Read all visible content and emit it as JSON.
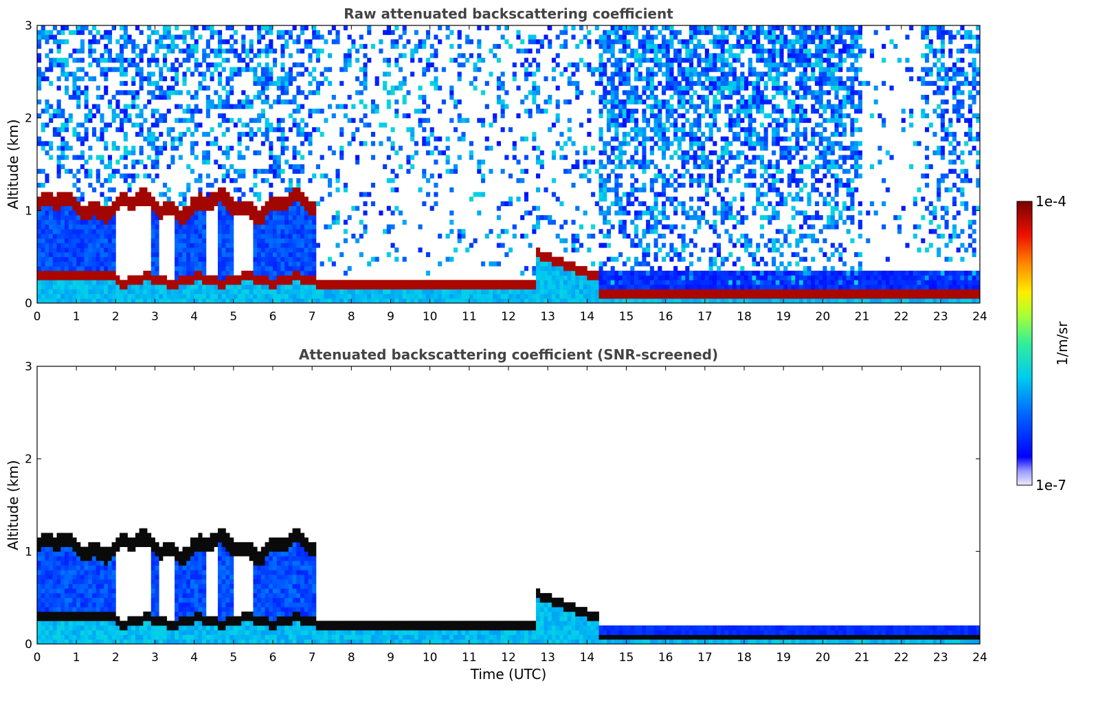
{
  "chart_data": [
    {
      "type": "heatmap",
      "title": "Raw attenuated backscattering coefficient",
      "xlabel": "",
      "ylabel": "Altitude (km)",
      "xlim": [
        0,
        24
      ],
      "ylim": [
        0,
        3
      ],
      "xticks": [
        0,
        1,
        2,
        3,
        4,
        5,
        6,
        7,
        8,
        9,
        10,
        11,
        12,
        13,
        14,
        15,
        16,
        17,
        18,
        19,
        20,
        21,
        22,
        23,
        24
      ],
      "yticks": [
        0,
        1,
        2,
        3
      ],
      "variant": "raw",
      "features": [
        {
          "name": "cloud-base-layer",
          "x_start": 0,
          "x_end": 7.1,
          "altitude_km": 1.05
        },
        {
          "name": "boundary-layer-top",
          "x_start": 1.9,
          "x_end": 6.5,
          "altitude_km": 0.25
        },
        {
          "name": "near-surface-layer",
          "x_start": 7.1,
          "x_end": 13.7,
          "altitude_km": 0.2
        },
        {
          "name": "rising-layer",
          "x_start": 12.7,
          "x_end": 14.3,
          "altitude_km_start": 0.55,
          "altitude_km_end": 0.28
        },
        {
          "name": "night-surface-layer",
          "x_start": 13.7,
          "x_end": 24,
          "altitude_km": 0.1
        }
      ]
    },
    {
      "type": "heatmap",
      "title": "Attenuated backscattering coefficient (SNR-screened)",
      "xlabel": "Time (UTC)",
      "ylabel": "Altitude (km)",
      "xlim": [
        0,
        24
      ],
      "ylim": [
        0,
        3
      ],
      "xticks": [
        0,
        1,
        2,
        3,
        4,
        5,
        6,
        7,
        8,
        9,
        10,
        11,
        12,
        13,
        14,
        15,
        16,
        17,
        18,
        19,
        20,
        21,
        22,
        23,
        24
      ],
      "yticks": [
        0,
        1,
        2,
        3
      ],
      "variant": "screened"
    }
  ],
  "colorbar": {
    "label": "1/m/sr",
    "max_label": "1e-4",
    "min_label": "1e-7",
    "colors": [
      "#e8e8ff",
      "#0000ff",
      "#0099ff",
      "#00ddee",
      "#66ff66",
      "#ffee00",
      "#ff6600",
      "#dd0000",
      "#800000"
    ]
  }
}
